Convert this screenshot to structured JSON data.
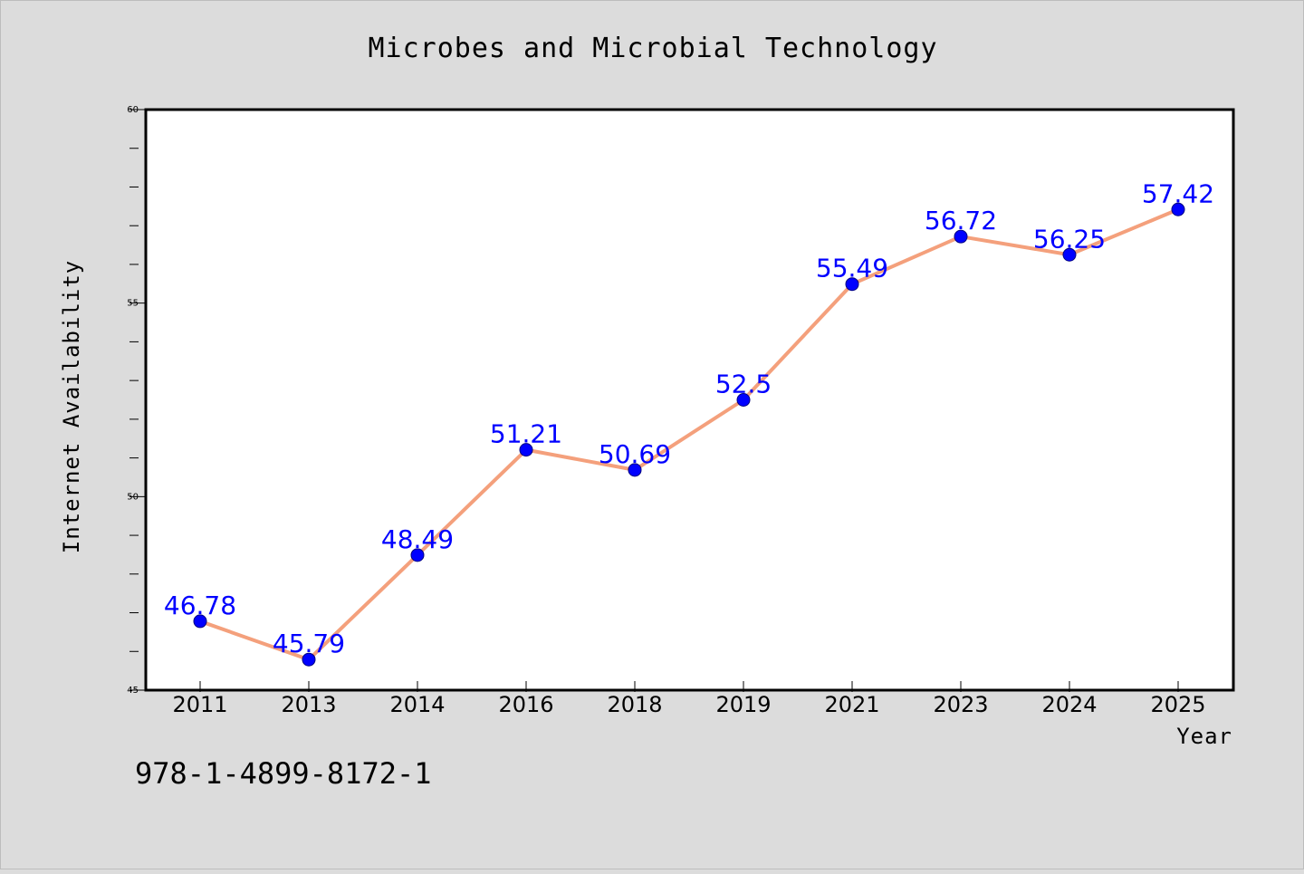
{
  "chart_data": {
    "type": "line",
    "title": "Microbes and Microbial Technology",
    "xlabel": "Year",
    "ylabel": "Internet Availability",
    "categories": [
      "2011",
      "2013",
      "2014",
      "2016",
      "2018",
      "2019",
      "2021",
      "2023",
      "2024",
      "2025"
    ],
    "series": [
      {
        "values": [
          46.78,
          45.79,
          48.49,
          51.21,
          50.69,
          52.5,
          55.49,
          56.72,
          56.25,
          57.42
        ],
        "labels": [
          "46.78",
          "45.79",
          "48.49",
          "51.21",
          "50.69",
          "52.5",
          "55.49",
          "56.72",
          "56.25",
          "57.42"
        ],
        "line_color": "#f4a07c",
        "marker_color": "#0000ff",
        "label_color": "#0000ff"
      }
    ],
    "ylim": [
      45,
      60
    ],
    "yticks": [
      45,
      50,
      55,
      60
    ],
    "ytick_labels": [
      "45",
      "50",
      "55",
      "60"
    ],
    "grid": false,
    "legend": "none"
  },
  "footer": {
    "isbn": "978-1-4899-8172-1"
  },
  "colors": {
    "background": "#dcdcdc",
    "plot_area": "#ffffff",
    "axis": "#000000"
  }
}
